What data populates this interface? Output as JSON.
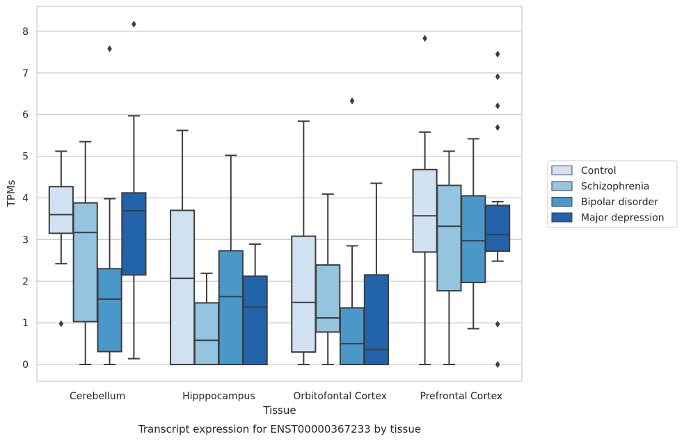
{
  "chart_data": {
    "type": "box",
    "title": "",
    "caption": "Transcript expression for ENST00000367233 by tissue",
    "xlabel": "Tissue",
    "ylabel": "TPMs",
    "ylim": [
      -0.4,
      8.6
    ],
    "yticks": [
      0,
      1,
      2,
      3,
      4,
      5,
      6,
      7,
      8
    ],
    "grid": "horizontal",
    "legend_position": "right",
    "categories": [
      "Cerebellum",
      "Hipppocampus",
      "Orbitofontal Cortex",
      "Prefrontal Cortex"
    ],
    "series": [
      {
        "name": "Control",
        "color": "#d0e1f2",
        "boxes": [
          {
            "whislo": 2.42,
            "q1": 3.15,
            "med": 3.6,
            "q3": 4.27,
            "whishi": 5.12,
            "fliers": [
              0.98
            ]
          },
          {
            "whislo": 0.0,
            "q1": 0.0,
            "med": 2.07,
            "q3": 3.7,
            "whishi": 5.62,
            "fliers": []
          },
          {
            "whislo": 0.0,
            "q1": 0.3,
            "med": 1.49,
            "q3": 3.08,
            "whishi": 5.84,
            "fliers": []
          },
          {
            "whislo": 0.0,
            "q1": 2.7,
            "med": 3.57,
            "q3": 4.68,
            "whishi": 5.58,
            "fliers": [
              7.83
            ]
          }
        ]
      },
      {
        "name": "Schizophrenia",
        "color": "#94c4df",
        "boxes": [
          {
            "whislo": 0.0,
            "q1": 1.03,
            "med": 3.17,
            "q3": 3.88,
            "whishi": 5.35,
            "fliers": []
          },
          {
            "whislo": 0.0,
            "q1": 0.0,
            "med": 0.58,
            "q3": 1.48,
            "whishi": 2.19,
            "fliers": []
          },
          {
            "whislo": 0.0,
            "q1": 0.78,
            "med": 1.12,
            "q3": 2.39,
            "whishi": 4.09,
            "fliers": []
          },
          {
            "whislo": 0.0,
            "q1": 1.77,
            "med": 3.32,
            "q3": 4.3,
            "whishi": 5.12,
            "fliers": []
          }
        ]
      },
      {
        "name": "Bipolar disorder",
        "color": "#4a98c9",
        "boxes": [
          {
            "whislo": 0.0,
            "q1": 0.31,
            "med": 1.57,
            "q3": 2.3,
            "whishi": 3.98,
            "fliers": [
              7.58
            ]
          },
          {
            "whislo": 0.0,
            "q1": 0.0,
            "med": 1.63,
            "q3": 2.73,
            "whishi": 5.02,
            "fliers": []
          },
          {
            "whislo": 0.0,
            "q1": 0.0,
            "med": 0.5,
            "q3": 1.36,
            "whishi": 2.85,
            "fliers": [
              6.33
            ]
          },
          {
            "whislo": 0.86,
            "q1": 1.97,
            "med": 2.97,
            "q3": 4.05,
            "whishi": 5.42,
            "fliers": []
          }
        ]
      },
      {
        "name": "Major depression",
        "color": "#2164ab",
        "boxes": [
          {
            "whislo": 0.14,
            "q1": 2.15,
            "med": 3.69,
            "q3": 4.12,
            "whishi": 5.97,
            "fliers": [
              8.17
            ]
          },
          {
            "whislo": 0.0,
            "q1": 0.0,
            "med": 1.38,
            "q3": 2.12,
            "whishi": 2.89,
            "fliers": []
          },
          {
            "whislo": 0.0,
            "q1": 0.0,
            "med": 0.36,
            "q3": 2.15,
            "whishi": 4.35,
            "fliers": []
          },
          {
            "whislo": 2.48,
            "q1": 2.72,
            "med": 3.12,
            "q3": 3.82,
            "whishi": 3.91,
            "fliers": [
              0.97,
              0.0,
              5.69,
              6.21,
              6.91,
              7.45
            ]
          }
        ]
      }
    ]
  }
}
